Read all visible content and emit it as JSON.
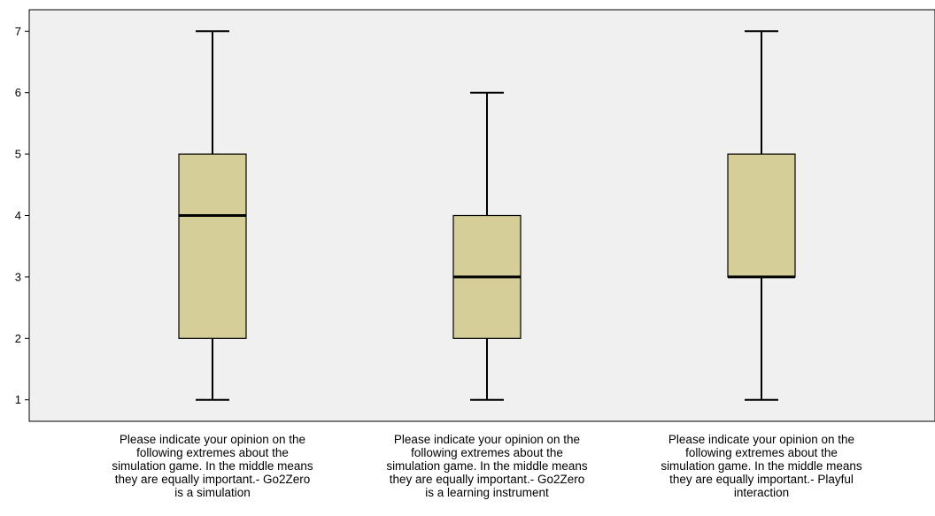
{
  "chart_data": {
    "type": "boxplot",
    "title": "",
    "xlabel": "",
    "ylabel": "",
    "ylim": [
      0.65,
      7.35
    ],
    "yticks": [
      1,
      2,
      3,
      4,
      5,
      6,
      7
    ],
    "yticklabels": [
      "1",
      "2",
      "3",
      "4",
      "5",
      "6",
      "7"
    ],
    "grid": false,
    "colors": {
      "box_fill": "#d6ce98",
      "plot_background": "#f0f0f0",
      "stroke": "#000000"
    },
    "categories": [
      {
        "lines": [
          "Please indicate your opinion on the",
          "following extremes about the",
          "simulation game. In the middle means",
          "they are equally important.- Go2Zero",
          "is a simulation"
        ],
        "min": 1,
        "q1": 2,
        "median": 4,
        "q3": 5,
        "max": 7
      },
      {
        "lines": [
          "Please indicate your opinion on the",
          "following extremes about the",
          "simulation game. In the middle means",
          "they are equally important.- Go2Zero",
          "is a learning instrument"
        ],
        "min": 1,
        "q1": 2,
        "median": 3,
        "q3": 4,
        "max": 6
      },
      {
        "lines": [
          "Please indicate your opinion on the",
          "following extremes about the",
          "simulation game. In the middle means",
          "they are equally important.- Playful",
          "interaction"
        ],
        "min": 1,
        "q1": 3,
        "median": 3,
        "q3": 5,
        "max": 7
      }
    ]
  }
}
